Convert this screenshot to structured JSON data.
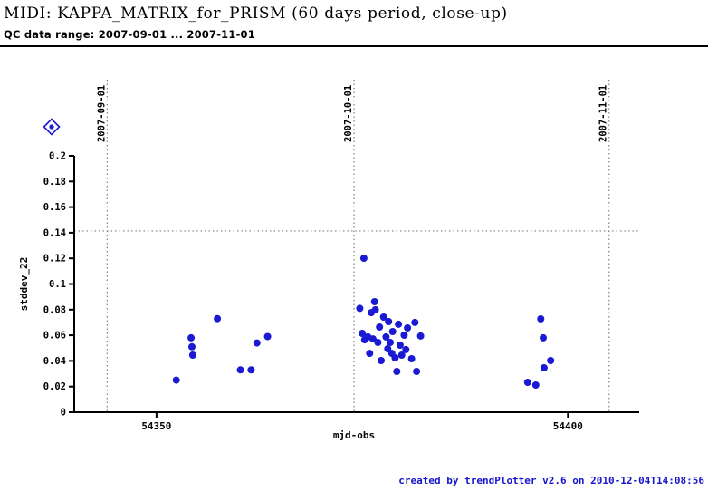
{
  "header": {
    "title": "MIDI: KAPPA_MATRIX_for_PRISM (60 days period, close-up)",
    "subtitle": "QC data range: 2007-09-01 ... 2007-11-01"
  },
  "footer": {
    "credit": "created by trendPlotter v2.6 on 2010-12-04T14:08:56"
  },
  "colors": {
    "point_blue": "#1a1ad2",
    "credit_blue": "#1515cc",
    "gridline_gray": "#808080",
    "axis_black": "#000000"
  },
  "chart_data": {
    "type": "scatter",
    "title": "MIDI: KAPPA_MATRIX_for_PRISM (60 days period, close-up)",
    "xlabel": "mjd-obs",
    "ylabel": "stddev_22",
    "xlim": [
      54340,
      54408
    ],
    "ylim": [
      0,
      0.2
    ],
    "x_ticks": [
      {
        "value": 54350,
        "label": "54350"
      },
      {
        "value": 54400,
        "label": "54400"
      }
    ],
    "y_ticks": [
      {
        "value": 0,
        "label": "0"
      },
      {
        "value": 0.02,
        "label": "0.02"
      },
      {
        "value": 0.04,
        "label": "0.04"
      },
      {
        "value": 0.06,
        "label": "0.06"
      },
      {
        "value": 0.08,
        "label": "0.08"
      },
      {
        "value": 0.1,
        "label": "0.1"
      },
      {
        "value": 0.12,
        "label": "0.12"
      },
      {
        "value": 0.14,
        "label": "0.14"
      },
      {
        "value": 0.16,
        "label": "0.16"
      },
      {
        "value": 0.18,
        "label": "0.18"
      },
      {
        "value": 0.2,
        "label": "0.2"
      }
    ],
    "date_markers": [
      {
        "label": "2007-09-01",
        "mjd": 54344
      },
      {
        "label": "2007-10-01",
        "mjd": 54374
      },
      {
        "label": "2007-11-01",
        "mjd": 54405
      }
    ],
    "threshold_line_y": 0.1414,
    "grid": "dotted vertical lines at month starts, dotted horizontal threshold",
    "legend_position": "top-left",
    "legend_symbol": "diamond-with-dot",
    "points": [
      [
        54352.4,
        0.025
      ],
      [
        54354.2,
        0.058
      ],
      [
        54354.3,
        0.051
      ],
      [
        54354.4,
        0.0445
      ],
      [
        54357.4,
        0.073
      ],
      [
        54360.2,
        0.033
      ],
      [
        54361.5,
        0.033
      ],
      [
        54362.2,
        0.054
      ],
      [
        54363.5,
        0.059
      ],
      [
        54374.7,
        0.081
      ],
      [
        54375.0,
        0.0615
      ],
      [
        54375.2,
        0.1201
      ],
      [
        54375.3,
        0.0565
      ],
      [
        54375.7,
        0.0587
      ],
      [
        54375.9,
        0.0459
      ],
      [
        54376.1,
        0.0777
      ],
      [
        54376.3,
        0.0572
      ],
      [
        54376.5,
        0.0862
      ],
      [
        54376.6,
        0.0799
      ],
      [
        54376.9,
        0.0544
      ],
      [
        54377.1,
        0.0664
      ],
      [
        54377.3,
        0.0403
      ],
      [
        54377.6,
        0.0742
      ],
      [
        54377.9,
        0.0587
      ],
      [
        54378.1,
        0.0495
      ],
      [
        54378.2,
        0.0707
      ],
      [
        54378.4,
        0.0544
      ],
      [
        54378.6,
        0.0459
      ],
      [
        54378.7,
        0.0629
      ],
      [
        54379.0,
        0.0424
      ],
      [
        54379.2,
        0.0318
      ],
      [
        54379.4,
        0.0686
      ],
      [
        54379.6,
        0.0523
      ],
      [
        54379.8,
        0.0445
      ],
      [
        54380.1,
        0.0601
      ],
      [
        54380.3,
        0.0488
      ],
      [
        54380.5,
        0.0657
      ],
      [
        54381.0,
        0.0417
      ],
      [
        54381.4,
        0.07
      ],
      [
        54381.6,
        0.0318
      ],
      [
        54382.1,
        0.0594
      ],
      [
        54395.1,
        0.0233
      ],
      [
        54396.1,
        0.0212
      ],
      [
        54396.7,
        0.0728
      ],
      [
        54397.0,
        0.058
      ],
      [
        54397.1,
        0.0346
      ],
      [
        54397.9,
        0.0403
      ]
    ]
  }
}
